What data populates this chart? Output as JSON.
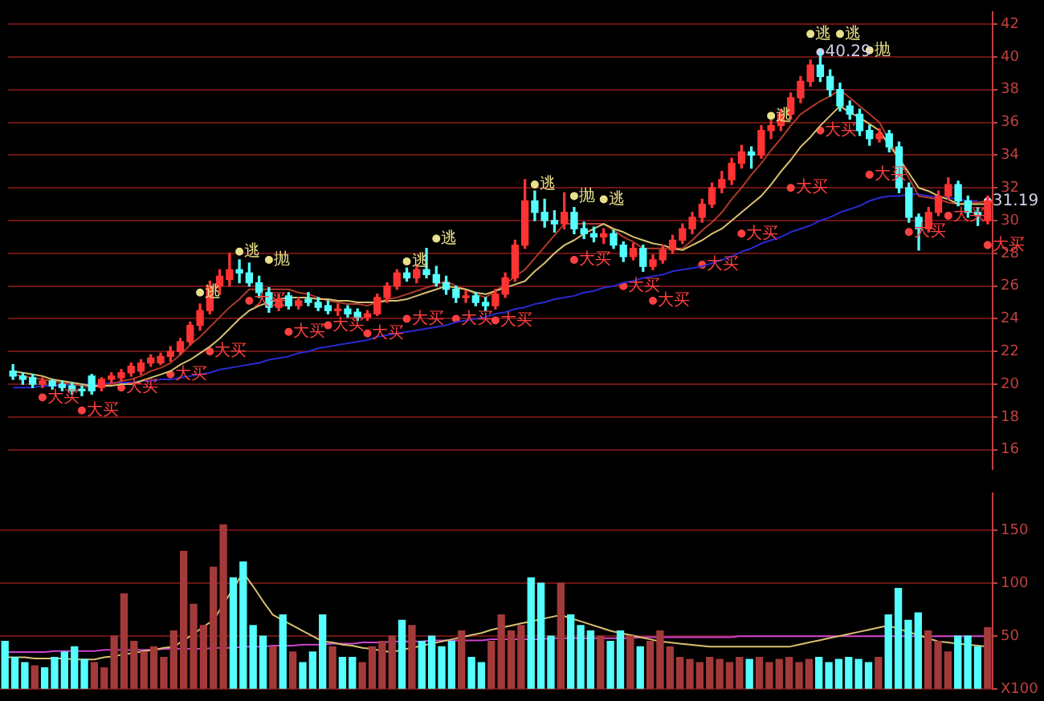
{
  "chart_data": [
    {
      "type": "candlestick",
      "tick_labels": "y",
      "grid": "y",
      "legend": false,
      "categories": [
        null,
        null,
        null,
        null,
        null,
        null,
        null,
        null,
        null,
        null,
        null,
        null,
        null,
        null,
        null,
        null,
        null,
        null,
        null,
        null,
        null,
        null,
        null,
        null,
        null,
        null,
        null,
        null,
        null,
        null,
        null,
        null,
        null,
        null,
        null,
        null,
        null,
        null,
        null,
        null,
        null,
        null,
        null,
        null,
        null,
        null,
        null,
        null,
        null,
        null,
        null,
        null,
        null,
        null,
        null,
        null,
        null,
        null,
        null,
        null,
        null,
        null,
        null,
        null,
        null,
        null,
        null,
        null,
        null,
        null,
        null,
        null,
        null,
        null,
        null,
        null,
        null,
        null,
        null,
        null,
        null,
        null,
        null,
        null,
        null,
        null,
        null,
        null,
        null,
        null,
        null,
        null,
        null,
        null,
        null,
        null,
        null,
        null,
        null,
        null
      ],
      "ylim": [
        14.8,
        42.75
      ],
      "yticks": [
        16,
        18,
        20,
        22,
        24,
        26,
        28,
        30,
        32,
        34,
        36,
        38,
        40,
        42
      ],
      "ohlc": [
        [
          20.8,
          21.2,
          20.3,
          20.5
        ],
        [
          20.5,
          20.7,
          20.0,
          20.3
        ],
        [
          20.4,
          20.6,
          19.8,
          20.0
        ],
        [
          20.0,
          20.4,
          19.8,
          20.2
        ],
        [
          20.2,
          20.3,
          19.7,
          19.9
        ],
        [
          20.0,
          20.2,
          19.6,
          19.8
        ],
        [
          19.9,
          20.1,
          19.4,
          19.6
        ],
        [
          19.7,
          19.9,
          19.3,
          19.6
        ],
        [
          20.5,
          20.6,
          19.4,
          19.6
        ],
        [
          19.8,
          20.4,
          19.6,
          20.3
        ],
        [
          20.3,
          20.7,
          20.1,
          20.5
        ],
        [
          20.4,
          20.9,
          20.2,
          20.7
        ],
        [
          20.7,
          21.3,
          20.5,
          21.1
        ],
        [
          20.8,
          21.5,
          20.6,
          21.3
        ],
        [
          21.3,
          21.8,
          21.1,
          21.6
        ],
        [
          21.3,
          21.9,
          21.2,
          21.7
        ],
        [
          21.7,
          22.3,
          21.4,
          22.0
        ],
        [
          22.0,
          22.8,
          21.8,
          22.6
        ],
        [
          22.6,
          23.8,
          22.4,
          23.6
        ],
        [
          23.6,
          24.9,
          23.3,
          24.5
        ],
        [
          24.5,
          26.3,
          24.3,
          26.0
        ],
        [
          26.0,
          27.0,
          25.5,
          26.6
        ],
        [
          26.4,
          28.0,
          26.0,
          27.0
        ],
        [
          27.0,
          27.6,
          26.2,
          26.8
        ],
        [
          26.8,
          27.4,
          26.0,
          26.2
        ],
        [
          26.2,
          26.6,
          25.3,
          25.6
        ],
        [
          25.6,
          25.9,
          24.4,
          24.7
        ],
        [
          24.7,
          25.5,
          24.5,
          25.2
        ],
        [
          25.4,
          25.6,
          24.6,
          24.8
        ],
        [
          24.8,
          25.3,
          24.6,
          25.1
        ],
        [
          25.2,
          25.6,
          24.8,
          25.0
        ],
        [
          25.0,
          25.3,
          24.5,
          24.7
        ],
        [
          24.8,
          25.1,
          24.3,
          24.5
        ],
        [
          24.5,
          24.9,
          24.2,
          24.6
        ],
        [
          24.6,
          24.8,
          24.1,
          24.3
        ],
        [
          24.4,
          24.6,
          23.9,
          24.1
        ],
        [
          24.1,
          24.5,
          23.9,
          24.3
        ],
        [
          24.3,
          25.5,
          24.2,
          25.3
        ],
        [
          25.3,
          26.2,
          25.0,
          26.0
        ],
        [
          26.0,
          27.0,
          25.8,
          26.8
        ],
        [
          26.8,
          27.1,
          26.3,
          26.5
        ],
        [
          26.5,
          27.3,
          26.2,
          27.0
        ],
        [
          27.0,
          28.3,
          26.5,
          26.7
        ],
        [
          26.7,
          27.2,
          26.0,
          26.2
        ],
        [
          26.2,
          26.6,
          25.5,
          25.8
        ],
        [
          25.8,
          26.0,
          25.0,
          25.3
        ],
        [
          25.3,
          25.7,
          25.0,
          25.4
        ],
        [
          25.4,
          25.6,
          24.8,
          25.0
        ],
        [
          25.0,
          25.3,
          24.5,
          24.8
        ],
        [
          24.8,
          25.8,
          24.6,
          25.5
        ],
        [
          25.5,
          26.8,
          25.3,
          26.5
        ],
        [
          26.5,
          28.8,
          26.3,
          28.5
        ],
        [
          28.5,
          32.5,
          28.3,
          31.2
        ],
        [
          31.2,
          31.8,
          30.0,
          30.5
        ],
        [
          30.5,
          31.3,
          29.6,
          30.0
        ],
        [
          30.0,
          30.6,
          29.3,
          29.8
        ],
        [
          29.8,
          31.7,
          29.5,
          30.5
        ],
        [
          30.5,
          30.8,
          29.2,
          29.5
        ],
        [
          29.5,
          29.9,
          28.9,
          29.2
        ],
        [
          29.2,
          29.6,
          28.7,
          29.0
        ],
        [
          29.0,
          29.5,
          28.6,
          29.2
        ],
        [
          29.2,
          29.4,
          28.3,
          28.5
        ],
        [
          28.5,
          28.7,
          27.5,
          27.8
        ],
        [
          27.8,
          28.6,
          27.6,
          28.3
        ],
        [
          28.3,
          28.5,
          26.9,
          27.2
        ],
        [
          27.2,
          27.9,
          27.0,
          27.6
        ],
        [
          27.6,
          28.5,
          27.4,
          28.2
        ],
        [
          28.2,
          29.1,
          28.0,
          28.8
        ],
        [
          28.8,
          29.8,
          28.6,
          29.5
        ],
        [
          29.5,
          30.5,
          29.2,
          30.2
        ],
        [
          30.2,
          31.3,
          29.9,
          31.0
        ],
        [
          31.0,
          32.3,
          30.8,
          32.0
        ],
        [
          32.0,
          33.0,
          31.7,
          32.5
        ],
        [
          32.5,
          33.8,
          32.2,
          33.5
        ],
        [
          33.5,
          34.6,
          33.2,
          34.2
        ],
        [
          34.2,
          34.5,
          33.2,
          34.0
        ],
        [
          34.0,
          35.8,
          33.8,
          35.5
        ],
        [
          35.5,
          36.1,
          35.0,
          35.8
        ],
        [
          35.8,
          36.8,
          35.5,
          36.5
        ],
        [
          36.5,
          37.8,
          36.2,
          37.5
        ],
        [
          37.5,
          38.8,
          37.2,
          38.5
        ],
        [
          38.5,
          39.8,
          38.2,
          39.5
        ],
        [
          39.5,
          40.29,
          38.5,
          38.8
        ],
        [
          38.8,
          39.2,
          37.6,
          38.0
        ],
        [
          38.0,
          38.4,
          36.7,
          37.0
        ],
        [
          37.0,
          37.3,
          36.2,
          36.5
        ],
        [
          36.5,
          36.8,
          35.2,
          35.5
        ],
        [
          35.5,
          35.8,
          34.6,
          35.0
        ],
        [
          35.0,
          35.6,
          34.8,
          35.3
        ],
        [
          35.3,
          35.5,
          34.2,
          34.5
        ],
        [
          34.5,
          34.8,
          31.7,
          32.0
        ],
        [
          32.0,
          32.3,
          29.9,
          30.2
        ],
        [
          30.2,
          30.4,
          28.2,
          29.5
        ],
        [
          29.5,
          30.8,
          29.3,
          30.5
        ],
        [
          30.5,
          31.8,
          30.3,
          31.5
        ],
        [
          31.5,
          32.6,
          31.3,
          32.2
        ],
        [
          32.2,
          32.4,
          30.9,
          31.2
        ],
        [
          31.2,
          31.5,
          30.2,
          30.5
        ],
        [
          30.5,
          30.8,
          29.7,
          30.3
        ],
        [
          30.0,
          31.5,
          29.8,
          31.19
        ]
      ],
      "colors": [
        "#55ffff",
        "#55ffff",
        "#55ffff",
        "#ff3333",
        "#55ffff",
        "#55ffff",
        "#55ffff",
        "#55ffff",
        "#55ffff",
        "#ff3333",
        "#ff3333",
        "#ff3333",
        "#ff3333",
        "#ff3333",
        "#ff3333",
        "#ff3333",
        "#ff3333",
        "#ff3333",
        "#ff3333",
        "#ff3333",
        "#ff3333",
        "#ff3333",
        "#ff3333",
        "#55ffff",
        "#55ffff",
        "#55ffff",
        "#55ffff",
        "#ff3333",
        "#55ffff",
        "#ff3333",
        "#55ffff",
        "#55ffff",
        "#55ffff",
        "#ff3333",
        "#55ffff",
        "#55ffff",
        "#ff3333",
        "#ff3333",
        "#ff3333",
        "#ff3333",
        "#55ffff",
        "#ff3333",
        "#55ffff",
        "#55ffff",
        "#55ffff",
        "#55ffff",
        "#ff3333",
        "#55ffff",
        "#55ffff",
        "#ff3333",
        "#ff3333",
        "#ff3333",
        "#ff3333",
        "#55ffff",
        "#55ffff",
        "#55ffff",
        "#ff3333",
        "#55ffff",
        "#55ffff",
        "#55ffff",
        "#ff3333",
        "#55ffff",
        "#55ffff",
        "#ff3333",
        "#55ffff",
        "#ff3333",
        "#ff3333",
        "#ff3333",
        "#ff3333",
        "#ff3333",
        "#ff3333",
        "#ff3333",
        "#ff3333",
        "#ff3333",
        "#ff3333",
        "#55ffff",
        "#ff3333",
        "#ff3333",
        "#ff3333",
        "#ff3333",
        "#ff3333",
        "#ff3333",
        "#55ffff",
        "#55ffff",
        "#55ffff",
        "#55ffff",
        "#55ffff",
        "#55ffff",
        "#ff3333",
        "#55ffff",
        "#55ffff",
        "#55ffff",
        "#55ffff",
        "#ff3333",
        "#ff3333",
        "#ff3333",
        "#55ffff",
        "#55ffff",
        "#55ffff",
        "#ff3333"
      ],
      "series": [
        {
          "type": "line",
          "color": "#d8c070",
          "values": [
            20.8,
            20.7,
            20.6,
            20.5,
            20.3,
            20.2,
            20.1,
            20.0,
            19.9,
            19.9,
            19.9,
            20.0,
            20.0,
            20.2,
            20.4,
            20.6,
            20.8,
            21.2,
            21.5,
            21.9,
            22.3,
            22.8,
            23.4,
            24.0,
            24.5,
            24.8,
            25.0,
            25.2,
            25.3,
            25.3,
            25.3,
            25.2,
            25.2,
            25.1,
            25.1,
            25.0,
            25.0,
            25.0,
            25.1,
            25.1,
            25.2,
            25.4,
            25.6,
            25.8,
            26.0,
            25.9,
            25.8,
            25.6,
            25.5,
            25.7,
            25.9,
            26.1,
            26.3,
            26.9,
            27.4,
            28.0,
            28.5,
            28.8,
            29.2,
            29.5,
            29.8,
            29.5,
            29.3,
            29.0,
            28.8,
            28.6,
            28.5,
            28.3,
            28.2,
            28.5,
            28.8,
            29.2,
            29.5,
            30.0,
            30.5,
            31.0,
            31.5,
            32.2,
            33.0,
            33.7,
            34.5,
            35.1,
            35.8,
            36.4,
            37.0,
            36.6,
            36.3,
            35.9,
            35.5,
            34.6,
            33.8,
            32.9,
            32.0,
            31.8,
            31.5,
            31.3,
            31.0,
            31.0,
            31.0,
            31.0
          ]
        },
        {
          "type": "line",
          "color": "#b03a2a",
          "values": [
            20.6,
            20.5,
            20.4,
            20.3,
            20.2,
            20.1,
            20.0,
            19.9,
            19.8,
            19.9,
            20.0,
            20.2,
            20.3,
            20.5,
            20.8,
            21.0,
            21.3,
            21.8,
            22.4,
            22.9,
            23.5,
            24.1,
            24.7,
            25.2,
            25.8,
            25.8,
            25.8,
            25.8,
            25.8,
            25.6,
            25.5,
            25.3,
            25.1,
            25.0,
            24.9,
            24.9,
            24.8,
            25.0,
            25.2,
            25.3,
            25.5,
            25.7,
            25.9,
            26.1,
            26.3,
            26.0,
            25.8,
            25.5,
            25.3,
            25.7,
            26.1,
            26.6,
            27.0,
            27.7,
            28.4,
            29.1,
            29.8,
            29.8,
            29.8,
            29.8,
            29.8,
            29.4,
            29.0,
            28.7,
            28.3,
            28.3,
            28.3,
            28.3,
            28.3,
            28.8,
            29.4,
            29.9,
            30.5,
            31.3,
            32.0,
            32.8,
            33.5,
            34.3,
            35.0,
            35.8,
            36.5,
            36.9,
            37.3,
            37.6,
            38.0,
            37.5,
            37.0,
            36.5,
            36.0,
            34.9,
            33.8,
            32.6,
            31.5,
            31.4,
            31.3,
            31.1,
            31.0,
            31.1,
            31.1,
            31.2
          ]
        },
        {
          "type": "line",
          "color": "#2a2ad0",
          "values": [
            19.8,
            19.8,
            19.8,
            19.9,
            19.9,
            19.9,
            20.0,
            20.0,
            20.0,
            20.0,
            20.1,
            20.1,
            20.1,
            20.2,
            20.2,
            20.3,
            20.3,
            20.4,
            20.5,
            20.6,
            20.7,
            20.9,
            21.0,
            21.1,
            21.2,
            21.3,
            21.5,
            21.6,
            21.7,
            21.9,
            22.0,
            22.2,
            22.3,
            22.4,
            22.5,
            22.6,
            22.7,
            22.9,
            23.0,
            23.1,
            23.2,
            23.3,
            23.4,
            23.5,
            23.6,
            23.8,
            23.9,
            24.0,
            24.1,
            24.3,
            24.4,
            24.6,
            24.7,
            24.9,
            25.0,
            25.2,
            25.3,
            25.4,
            25.6,
            25.7,
            25.9,
            26.0,
            26.2,
            26.3,
            26.5,
            26.6,
            26.7,
            26.9,
            27.0,
            27.1,
            27.2,
            27.4,
            27.6,
            27.8,
            28.1,
            28.3,
            28.6,
            28.8,
            29.0,
            29.3,
            29.5,
            29.7,
            30.0,
            30.2,
            30.5,
            30.7,
            30.9,
            31.2,
            31.4,
            31.5,
            31.5,
            31.6,
            31.6,
            31.5,
            31.4,
            31.4,
            31.3,
            31.2,
            31.2,
            null
          ]
        },
        {
          "type": "scatter",
          "color": "#ff4040",
          "values": [
            null,
            null,
            null,
            19.2,
            null,
            null,
            null,
            18.4,
            null,
            null,
            null,
            19.8,
            null,
            null,
            null,
            null,
            20.6,
            null,
            null,
            null,
            22.0,
            null,
            null,
            null,
            25.1,
            null,
            null,
            null,
            23.2,
            null,
            null,
            null,
            23.6,
            null,
            null,
            null,
            23.1,
            null,
            null,
            null,
            24.0,
            null,
            null,
            null,
            null,
            24.0,
            null,
            null,
            null,
            23.9,
            null,
            null,
            null,
            null,
            null,
            null,
            null,
            27.6,
            null,
            null,
            null,
            null,
            26.0,
            null,
            null,
            25.1,
            null,
            null,
            null,
            null,
            27.3,
            null,
            null,
            null,
            29.2,
            null,
            null,
            null,
            null,
            32.0,
            null,
            null,
            35.5,
            null,
            null,
            null,
            null,
            32.8,
            null,
            null,
            null,
            29.3,
            null,
            null,
            null,
            30.3,
            null,
            null,
            null,
            28.5
          ],
          "value_labels": [
            null,
            null,
            null,
            "大买",
            null,
            null,
            null,
            "大买",
            null,
            null,
            null,
            "大买",
            null,
            null,
            null,
            null,
            "大买",
            null,
            null,
            null,
            "大买",
            null,
            null,
            null,
            "大买",
            null,
            null,
            null,
            "大买",
            null,
            null,
            null,
            "大买",
            null,
            null,
            null,
            "大买",
            null,
            null,
            null,
            "大买",
            null,
            null,
            null,
            null,
            "大买",
            null,
            null,
            null,
            "大买",
            null,
            null,
            null,
            null,
            null,
            null,
            null,
            "大买",
            null,
            null,
            null,
            null,
            "大买",
            null,
            null,
            "大买",
            null,
            null,
            null,
            null,
            "大买",
            null,
            null,
            null,
            "大买",
            null,
            null,
            null,
            null,
            "大买",
            null,
            null,
            "大买",
            null,
            null,
            null,
            null,
            "大买",
            null,
            null,
            null,
            "大买",
            null,
            null,
            null,
            "大买",
            null,
            null,
            null,
            "大买"
          ]
        },
        {
          "type": "scatter",
          "color": "#e8e08a",
          "values": [
            null,
            null,
            null,
            null,
            null,
            null,
            null,
            null,
            null,
            null,
            null,
            null,
            null,
            null,
            null,
            null,
            null,
            null,
            null,
            25.6,
            null,
            null,
            null,
            28.1,
            null,
            null,
            27.6,
            null,
            null,
            null,
            null,
            null,
            null,
            null,
            null,
            null,
            null,
            null,
            null,
            null,
            27.5,
            null,
            null,
            28.9,
            null,
            null,
            null,
            null,
            null,
            null,
            null,
            null,
            null,
            32.2,
            null,
            null,
            null,
            31.5,
            null,
            null,
            31.3,
            null,
            null,
            null,
            null,
            null,
            null,
            null,
            null,
            null,
            null,
            null,
            null,
            null,
            null,
            null,
            null,
            36.4,
            null,
            null,
            null,
            41.4,
            null,
            null,
            41.4,
            null,
            null,
            40.4,
            null,
            null,
            null,
            null,
            null,
            null,
            null,
            null,
            null,
            null,
            null,
            null
          ],
          "value_labels": [
            null,
            null,
            null,
            null,
            null,
            null,
            null,
            null,
            null,
            null,
            null,
            null,
            null,
            null,
            null,
            null,
            null,
            null,
            null,
            "逃",
            null,
            null,
            null,
            "逃",
            null,
            null,
            "抛",
            null,
            null,
            null,
            null,
            null,
            null,
            null,
            null,
            null,
            null,
            null,
            null,
            null,
            "逃",
            null,
            null,
            "逃",
            null,
            null,
            null,
            null,
            null,
            null,
            null,
            null,
            null,
            "逃",
            null,
            null,
            null,
            "抛",
            null,
            null,
            "逃",
            null,
            null,
            null,
            null,
            null,
            null,
            null,
            null,
            null,
            null,
            null,
            null,
            null,
            null,
            null,
            null,
            "逃",
            null,
            null,
            null,
            "逃",
            null,
            null,
            "逃",
            null,
            null,
            "抛",
            null,
            null,
            null,
            null,
            null,
            null,
            null,
            null,
            null,
            null,
            null,
            null
          ]
        },
        {
          "type": "scatter",
          "color": "#d0d0e8",
          "values": [
            null,
            null,
            null,
            null,
            null,
            null,
            null,
            null,
            null,
            null,
            null,
            null,
            null,
            null,
            null,
            null,
            null,
            null,
            null,
            null,
            null,
            null,
            null,
            null,
            null,
            null,
            null,
            null,
            null,
            null,
            null,
            null,
            null,
            null,
            null,
            null,
            null,
            null,
            null,
            null,
            null,
            null,
            null,
            null,
            null,
            null,
            null,
            null,
            null,
            null,
            null,
            null,
            null,
            null,
            null,
            null,
            null,
            null,
            null,
            null,
            null,
            null,
            null,
            null,
            null,
            null,
            null,
            null,
            null,
            null,
            null,
            null,
            null,
            null,
            null,
            null,
            null,
            null,
            null,
            null,
            null,
            null,
            40.29,
            null,
            null,
            null,
            null,
            null,
            null,
            null,
            null,
            null,
            null,
            null,
            null,
            null,
            null,
            null,
            null,
            31.19
          ],
          "value_labels": [
            null,
            null,
            null,
            null,
            null,
            null,
            null,
            null,
            null,
            null,
            null,
            null,
            null,
            null,
            null,
            null,
            null,
            null,
            null,
            null,
            null,
            null,
            null,
            null,
            null,
            null,
            null,
            null,
            null,
            null,
            null,
            null,
            null,
            null,
            null,
            null,
            null,
            null,
            null,
            null,
            null,
            null,
            null,
            null,
            null,
            null,
            null,
            null,
            null,
            null,
            null,
            null,
            null,
            null,
            null,
            null,
            null,
            null,
            null,
            null,
            null,
            null,
            null,
            null,
            null,
            null,
            null,
            null,
            null,
            null,
            null,
            null,
            null,
            null,
            null,
            null,
            null,
            null,
            null,
            null,
            null,
            null,
            "40.29",
            null,
            null,
            null,
            null,
            null,
            null,
            null,
            null,
            null,
            null,
            null,
            null,
            null,
            null,
            null,
            null,
            "31.19"
          ]
        }
      ]
    },
    {
      "type": "bar",
      "tick_labels": "y",
      "grid": "y",
      "legend": false,
      "categories": [
        null,
        null,
        null,
        null,
        null,
        null,
        null,
        null,
        null,
        null,
        null,
        null,
        null,
        null,
        null,
        null,
        null,
        null,
        null,
        null,
        null,
        null,
        null,
        null,
        null,
        null,
        null,
        null,
        null,
        null,
        null,
        null,
        null,
        null,
        null,
        null,
        null,
        null,
        null,
        null,
        null,
        null,
        null,
        null,
        null,
        null,
        null,
        null,
        null,
        null,
        null,
        null,
        null,
        null,
        null,
        null,
        null,
        null,
        null,
        null,
        null,
        null,
        null,
        null,
        null,
        null,
        null,
        null,
        null,
        null,
        null,
        null,
        null,
        null,
        null,
        null,
        null,
        null,
        null,
        null,
        null,
        null,
        null,
        null,
        null,
        null,
        null,
        null,
        null,
        null,
        null,
        null,
        null,
        null,
        null,
        null,
        null,
        null,
        null,
        null
      ],
      "ylim": [
        0,
        185
      ],
      "yticks": [
        {
          "value": 0,
          "label": "X100"
        },
        50,
        100,
        150
      ],
      "values": [
        45,
        30,
        25,
        22,
        20,
        30,
        35,
        40,
        28,
        25,
        20,
        50,
        90,
        45,
        35,
        40,
        30,
        55,
        130,
        80,
        60,
        115,
        155,
        105,
        120,
        60,
        50,
        40,
        70,
        35,
        25,
        35,
        70,
        40,
        30,
        30,
        25,
        40,
        45,
        50,
        65,
        60,
        45,
        50,
        40,
        45,
        55,
        30,
        25,
        45,
        70,
        55,
        60,
        105,
        100,
        50,
        100,
        70,
        60,
        55,
        50,
        45,
        55,
        50,
        40,
        45,
        55,
        40,
        30,
        28,
        25,
        30,
        28,
        25,
        30,
        28,
        30,
        25,
        28,
        30,
        25,
        28,
        30,
        25,
        28,
        30,
        28,
        25,
        30,
        70,
        95,
        65,
        72,
        55,
        45,
        35,
        50,
        50,
        40,
        58
      ],
      "colors": [
        "#55ffff",
        "#55ffff",
        "#55ffff",
        "#a33a3a",
        "#55ffff",
        "#55ffff",
        "#55ffff",
        "#55ffff",
        "#55ffff",
        "#a33a3a",
        "#a33a3a",
        "#a33a3a",
        "#a33a3a",
        "#a33a3a",
        "#a33a3a",
        "#a33a3a",
        "#a33a3a",
        "#a33a3a",
        "#a33a3a",
        "#a33a3a",
        "#a33a3a",
        "#a33a3a",
        "#a33a3a",
        "#55ffff",
        "#55ffff",
        "#55ffff",
        "#55ffff",
        "#a33a3a",
        "#55ffff",
        "#a33a3a",
        "#55ffff",
        "#55ffff",
        "#55ffff",
        "#a33a3a",
        "#55ffff",
        "#55ffff",
        "#a33a3a",
        "#a33a3a",
        "#a33a3a",
        "#a33a3a",
        "#55ffff",
        "#a33a3a",
        "#55ffff",
        "#55ffff",
        "#55ffff",
        "#55ffff",
        "#a33a3a",
        "#55ffff",
        "#55ffff",
        "#a33a3a",
        "#a33a3a",
        "#a33a3a",
        "#a33a3a",
        "#55ffff",
        "#55ffff",
        "#55ffff",
        "#a33a3a",
        "#55ffff",
        "#55ffff",
        "#55ffff",
        "#a33a3a",
        "#55ffff",
        "#55ffff",
        "#a33a3a",
        "#55ffff",
        "#a33a3a",
        "#a33a3a",
        "#a33a3a",
        "#a33a3a",
        "#a33a3a",
        "#a33a3a",
        "#a33a3a",
        "#a33a3a",
        "#a33a3a",
        "#a33a3a",
        "#55ffff",
        "#a33a3a",
        "#a33a3a",
        "#a33a3a",
        "#a33a3a",
        "#a33a3a",
        "#a33a3a",
        "#55ffff",
        "#55ffff",
        "#55ffff",
        "#55ffff",
        "#55ffff",
        "#55ffff",
        "#a33a3a",
        "#55ffff",
        "#55ffff",
        "#55ffff",
        "#55ffff",
        "#a33a3a",
        "#a33a3a",
        "#a33a3a",
        "#55ffff",
        "#55ffff",
        "#55ffff",
        "#a33a3a"
      ],
      "series": [
        {
          "type": "line",
          "color": "#d8c070",
          "values": [
            30,
            30,
            30,
            29,
            29,
            29,
            29,
            28,
            28,
            28,
            30,
            31,
            33,
            34,
            36,
            37,
            39,
            40,
            46,
            52,
            59,
            65,
            80,
            95,
            110,
            97,
            83,
            70,
            65,
            60,
            55,
            50,
            45,
            44,
            42,
            41,
            39,
            38,
            36,
            35,
            37,
            39,
            41,
            43,
            45,
            47,
            49,
            51,
            53,
            56,
            58,
            60,
            62,
            64,
            66,
            68,
            70,
            67,
            64,
            61,
            58,
            55,
            53,
            51,
            49,
            47,
            45,
            44,
            43,
            42,
            41,
            40,
            40,
            40,
            40,
            40,
            40,
            40,
            40,
            40,
            42,
            44,
            46,
            48,
            50,
            52,
            54,
            56,
            58,
            60,
            57,
            54,
            51,
            48,
            45,
            44,
            43,
            42,
            41,
            40
          ]
        },
        {
          "type": "line",
          "color": "#cc44cc",
          "values": [
            35,
            35,
            35,
            35,
            35,
            36,
            36,
            36,
            36,
            36,
            37,
            37,
            37,
            37,
            37,
            37,
            38,
            38,
            38,
            38,
            38,
            39,
            39,
            39,
            40,
            40,
            40,
            41,
            41,
            41,
            42,
            42,
            42,
            43,
            43,
            43,
            44,
            44,
            44,
            45,
            45,
            45,
            45,
            46,
            46,
            46,
            46,
            46,
            46,
            47,
            47,
            47,
            47,
            47,
            47,
            48,
            48,
            48,
            48,
            48,
            48,
            48,
            48,
            48,
            49,
            49,
            49,
            49,
            49,
            49,
            49,
            49,
            49,
            49,
            50,
            50,
            50,
            50,
            50,
            50,
            50,
            50,
            50,
            50,
            50,
            50,
            50,
            50,
            50,
            50,
            50,
            50,
            50,
            50,
            50,
            50,
            50,
            50,
            50,
            50
          ]
        }
      ]
    }
  ]
}
